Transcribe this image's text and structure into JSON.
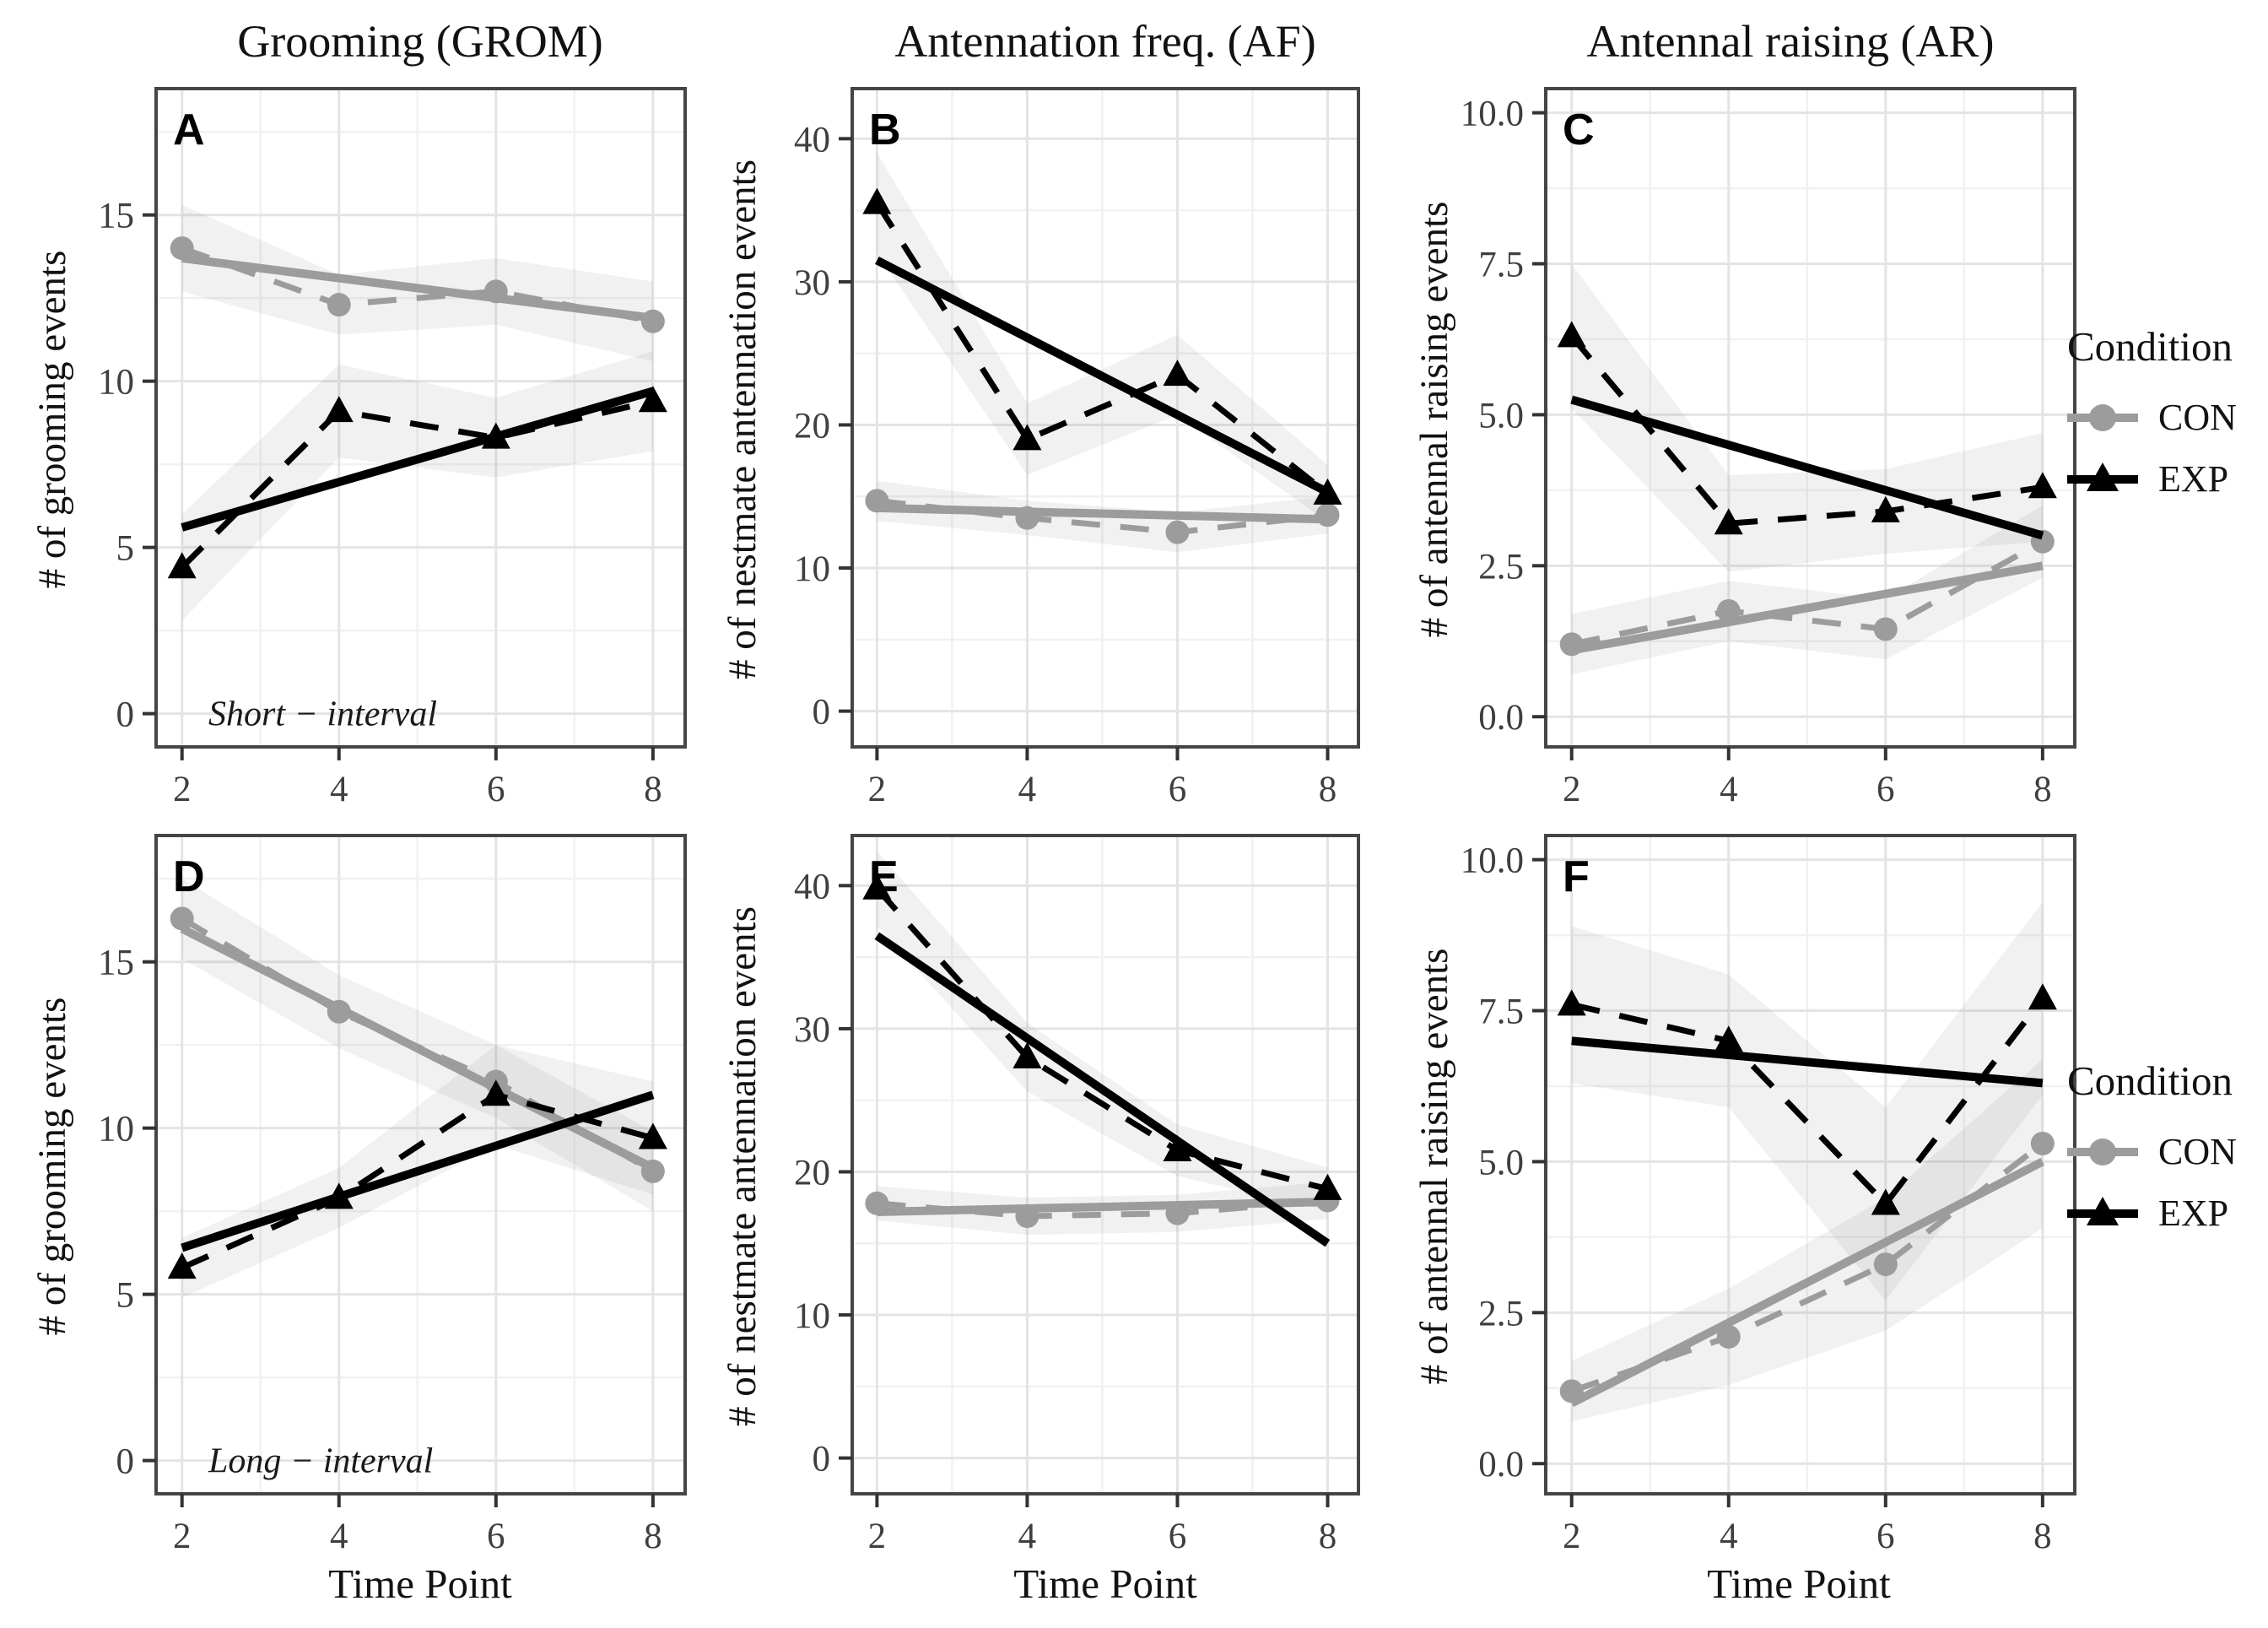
{
  "figure": {
    "background": "#ffffff",
    "col_titles": [
      "Grooming (GROM)",
      "Antennation freq. (AF)",
      "Antennal raising (AR)"
    ],
    "xlabel": "Time Point",
    "row_annotations": [
      "Short − interval",
      "Long − interval"
    ],
    "legend": {
      "title": "Condition",
      "entries": [
        {
          "label": "CON",
          "color": "#9c9c9c",
          "marker": "circle"
        },
        {
          "label": "EXP",
          "color": "#000000",
          "marker": "triangle"
        }
      ]
    },
    "style": {
      "grid_major": "#e4e4e4",
      "grid_minor": "#f1f1f1",
      "frame": "#454545",
      "tick_color": "#333333",
      "ribbon_fill": "#8c8c8c",
      "ribbon_opacity": 0.12
    }
  },
  "chart_data": [
    {
      "letter": "A",
      "row": 0,
      "col": 0,
      "type": "line",
      "title": "Grooming (GROM)",
      "ylabel": "# of grooming events",
      "annotation": "Short − interval",
      "x": [
        2,
        4,
        6,
        8
      ],
      "xtick_labels": [
        "2",
        "4",
        "6",
        "8"
      ],
      "xlim": [
        1.67,
        8.41
      ],
      "ylim": [
        -1.0,
        18.8
      ],
      "yticks": [
        0,
        5,
        10,
        15
      ],
      "ytick_labels": [
        "0",
        "5",
        "10",
        "15"
      ],
      "series": [
        {
          "name": "CON",
          "color": "#9c9c9c",
          "marker": "circle",
          "line": "dashed",
          "values": [
            14.0,
            12.3,
            12.7,
            11.8
          ],
          "trend": [
            13.7,
            11.9
          ],
          "ribbon": [
            1.3,
            0.9,
            1.0,
            1.2
          ]
        },
        {
          "name": "EXP",
          "color": "#000000",
          "marker": "triangle",
          "line": "dashed",
          "values": [
            4.4,
            9.1,
            8.3,
            9.4
          ],
          "trend": [
            5.6,
            9.7
          ],
          "ribbon": [
            1.6,
            1.4,
            1.2,
            1.5
          ]
        }
      ]
    },
    {
      "letter": "B",
      "row": 0,
      "col": 1,
      "type": "line",
      "title": "Antennation freq. (AF)",
      "ylabel": "# of nestmate antennation events",
      "annotation": "",
      "x": [
        2,
        4,
        6,
        8
      ],
      "xtick_labels": [
        "2",
        "4",
        "6",
        "8"
      ],
      "xlim": [
        1.67,
        8.41
      ],
      "ylim": [
        -2.5,
        43.5
      ],
      "yticks": [
        0,
        10,
        20,
        30,
        40
      ],
      "ytick_labels": [
        "0",
        "10",
        "20",
        "30",
        "40"
      ],
      "series": [
        {
          "name": "CON",
          "color": "#9c9c9c",
          "marker": "circle",
          "line": "dashed",
          "values": [
            14.7,
            13.5,
            12.5,
            13.7
          ],
          "trend": [
            14.2,
            13.4
          ],
          "ribbon": [
            1.4,
            1.2,
            1.4,
            1.3
          ]
        },
        {
          "name": "EXP",
          "color": "#000000",
          "marker": "triangle",
          "line": "dashed",
          "values": [
            35.5,
            19.0,
            23.5,
            15.2
          ],
          "trend": [
            31.5,
            15.3
          ],
          "ribbon": [
            3.5,
            2.5,
            2.8,
            2.0
          ]
        }
      ]
    },
    {
      "letter": "C",
      "row": 0,
      "col": 2,
      "type": "line",
      "title": "Antennal raising (AR)",
      "ylabel": "# of antennal raising events",
      "annotation": "",
      "x": [
        2,
        4,
        6,
        8
      ],
      "xtick_labels": [
        "2",
        "4",
        "6",
        "8"
      ],
      "xlim": [
        1.67,
        8.41
      ],
      "ylim": [
        -0.5,
        10.4
      ],
      "yticks": [
        0,
        2.5,
        5,
        7.5,
        10
      ],
      "ytick_labels": [
        "0.0",
        "2.5",
        "5.0",
        "7.5",
        "10.0"
      ],
      "series": [
        {
          "name": "CON",
          "color": "#9c9c9c",
          "marker": "circle",
          "line": "dashed",
          "values": [
            1.2,
            1.75,
            1.45,
            2.9
          ],
          "trend": [
            1.1,
            2.5
          ],
          "ribbon": [
            0.5,
            0.5,
            0.5,
            0.6
          ]
        },
        {
          "name": "EXP",
          "color": "#000000",
          "marker": "triangle",
          "line": "dashed",
          "values": [
            6.3,
            3.2,
            3.4,
            3.8
          ],
          "trend": [
            5.25,
            3.0
          ],
          "ribbon": [
            1.2,
            0.8,
            0.7,
            0.9
          ]
        }
      ]
    },
    {
      "letter": "D",
      "row": 1,
      "col": 0,
      "type": "line",
      "title": "Grooming (GROM)",
      "ylabel": "# of grooming events",
      "annotation": "Long − interval",
      "x": [
        2,
        4,
        6,
        8
      ],
      "xtick_labels": [
        "2",
        "4",
        "6",
        "8"
      ],
      "xlim": [
        1.67,
        8.41
      ],
      "ylim": [
        -1.0,
        18.8
      ],
      "yticks": [
        0,
        5,
        10,
        15
      ],
      "ytick_labels": [
        "0",
        "5",
        "10",
        "15"
      ],
      "series": [
        {
          "name": "CON",
          "color": "#9c9c9c",
          "marker": "circle",
          "line": "dashed",
          "values": [
            16.3,
            13.5,
            11.4,
            8.7
          ],
          "trend": [
            16.0,
            8.8
          ],
          "ribbon": [
            1.2,
            1.1,
            1.1,
            1.2
          ]
        },
        {
          "name": "EXP",
          "color": "#000000",
          "marker": "triangle",
          "line": "dashed",
          "values": [
            5.8,
            7.9,
            11.0,
            9.7
          ],
          "trend": [
            6.4,
            11.0
          ],
          "ribbon": [
            0.9,
            0.9,
            1.5,
            1.7
          ]
        }
      ]
    },
    {
      "letter": "E",
      "row": 1,
      "col": 1,
      "type": "line",
      "title": "Antennation freq. (AF)",
      "ylabel": "# of nestmate antennation events",
      "annotation": "",
      "x": [
        2,
        4,
        6,
        8
      ],
      "xtick_labels": [
        "2",
        "4",
        "6",
        "8"
      ],
      "xlim": [
        1.67,
        8.41
      ],
      "ylim": [
        -2.5,
        43.5
      ],
      "yticks": [
        0,
        10,
        20,
        30,
        40
      ],
      "ytick_labels": [
        "0",
        "10",
        "20",
        "30",
        "40"
      ],
      "series": [
        {
          "name": "CON",
          "color": "#9c9c9c",
          "marker": "circle",
          "line": "dashed",
          "values": [
            17.8,
            16.9,
            17.1,
            18.0
          ],
          "trend": [
            17.2,
            17.9
          ],
          "ribbon": [
            1.2,
            1.3,
            1.3,
            1.3
          ]
        },
        {
          "name": "EXP",
          "color": "#000000",
          "marker": "triangle",
          "line": "dashed",
          "values": [
            39.8,
            28.0,
            21.5,
            18.8
          ],
          "trend": [
            36.5,
            15.0
          ],
          "ribbon": [
            2.6,
            2.4,
            1.8,
            1.5
          ]
        }
      ]
    },
    {
      "letter": "F",
      "row": 1,
      "col": 2,
      "type": "line",
      "title": "Antennal raising (AR)",
      "ylabel": "# of antennal raising events",
      "annotation": "",
      "x": [
        2,
        4,
        6,
        8
      ],
      "xtick_labels": [
        "2",
        "4",
        "6",
        "8"
      ],
      "xlim": [
        1.67,
        8.41
      ],
      "ylim": [
        -0.5,
        10.4
      ],
      "yticks": [
        0,
        2.5,
        5,
        7.5,
        10
      ],
      "ytick_labels": [
        "0.0",
        "2.5",
        "5.0",
        "7.5",
        "10.0"
      ],
      "series": [
        {
          "name": "CON",
          "color": "#9c9c9c",
          "marker": "circle",
          "line": "dashed",
          "values": [
            1.2,
            2.1,
            3.3,
            5.3
          ],
          "trend": [
            1.0,
            5.0
          ],
          "ribbon": [
            0.5,
            0.8,
            1.1,
            1.4
          ]
        },
        {
          "name": "EXP",
          "color": "#000000",
          "marker": "triangle",
          "line": "dashed",
          "values": [
            7.6,
            7.0,
            4.3,
            7.7
          ],
          "trend": [
            7.0,
            6.3
          ],
          "ribbon": [
            1.3,
            1.1,
            1.6,
            1.6
          ]
        }
      ]
    }
  ]
}
